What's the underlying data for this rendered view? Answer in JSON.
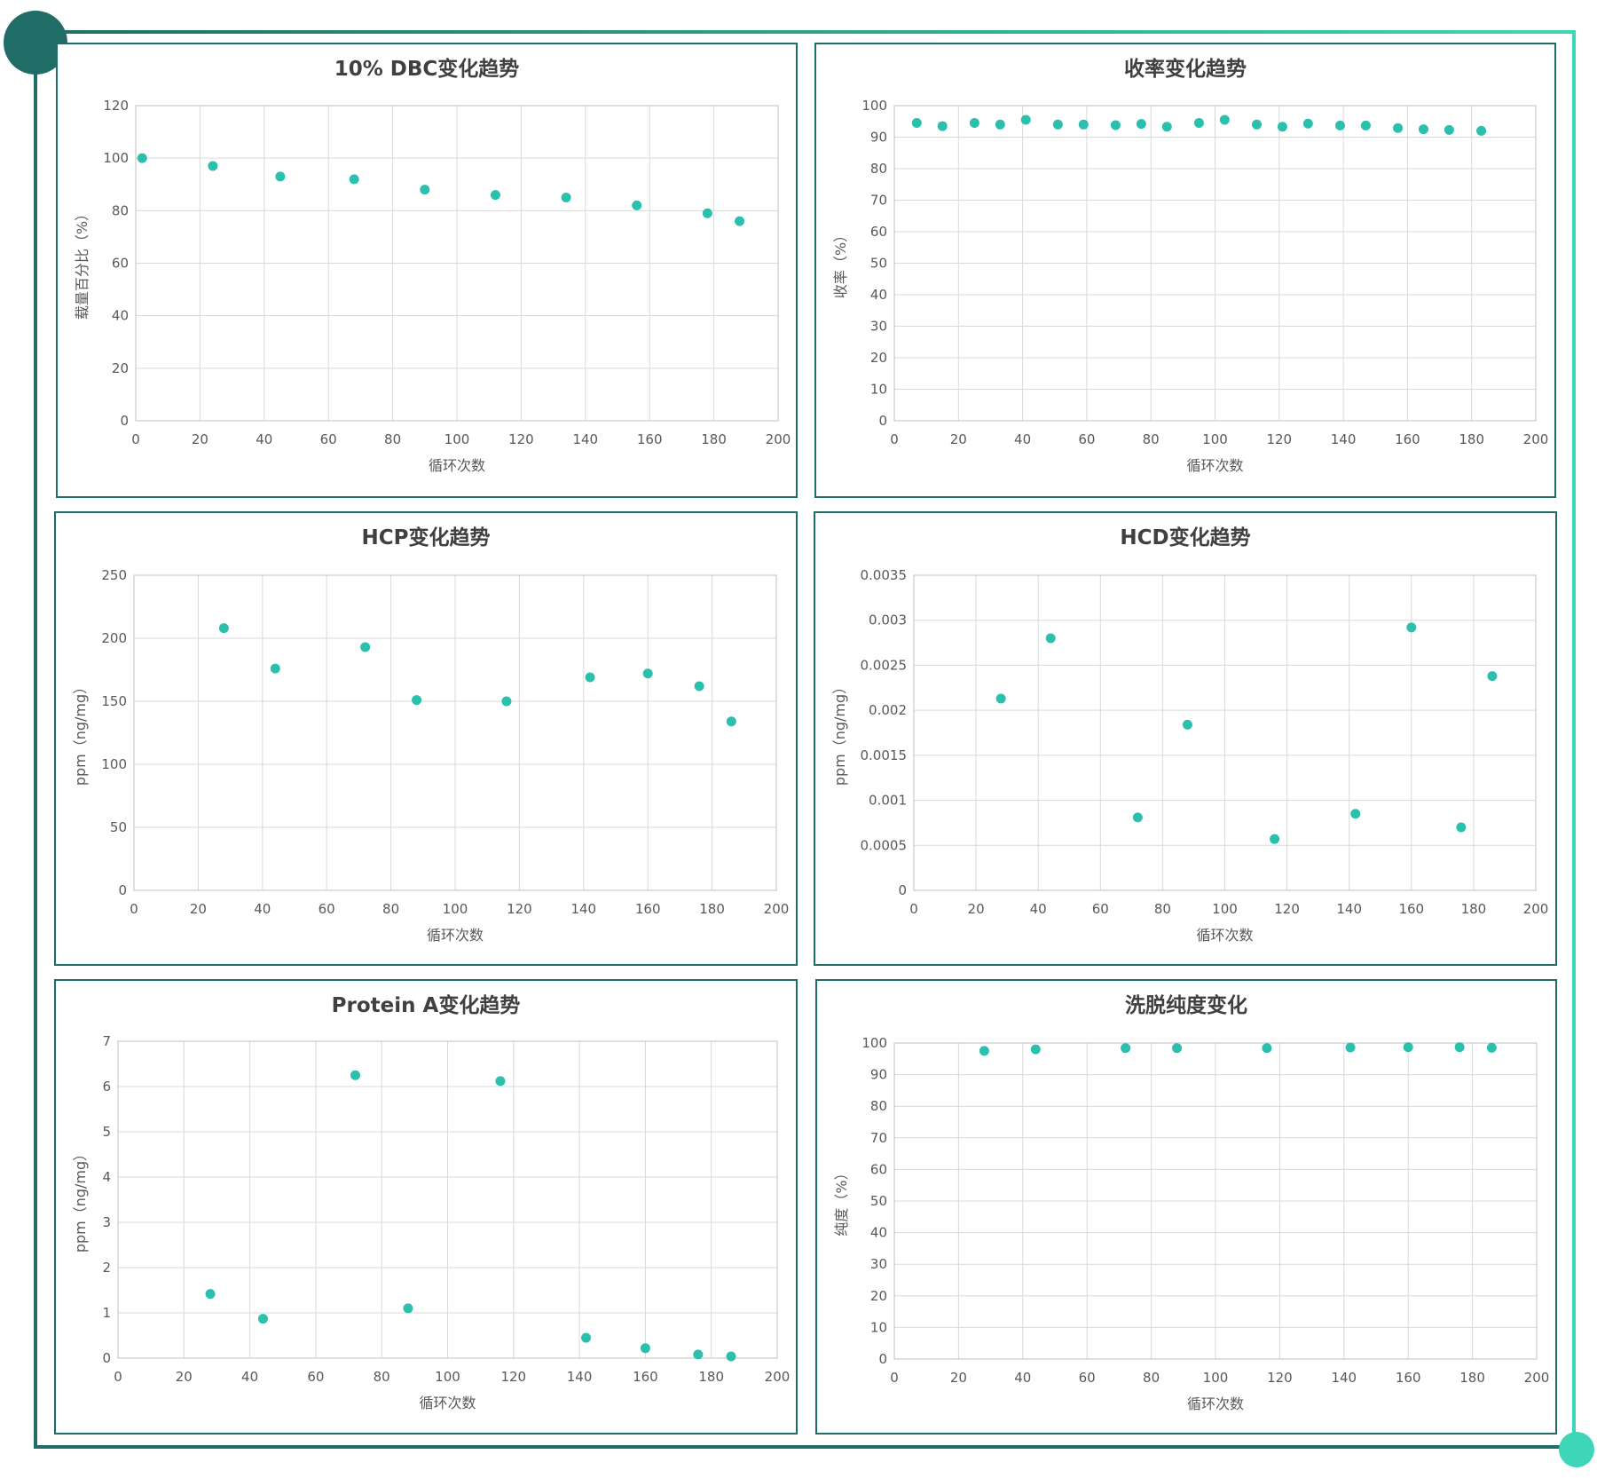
{
  "decor": {
    "frame_color": "#1f6d66",
    "accent_color": "#3dd6b6",
    "marker_color": "#2bbfae"
  },
  "chart_data": [
    {
      "type": "scatter",
      "title": "10% DBC变化趋势",
      "xlabel": "循环次数",
      "ylabel": "载量百分比（%）",
      "xlim": [
        0,
        200
      ],
      "ylim": [
        0,
        120
      ],
      "xticks": [
        0,
        20,
        40,
        60,
        80,
        100,
        120,
        140,
        160,
        180,
        200
      ],
      "yticks": [
        0,
        20,
        40,
        60,
        80,
        100,
        120
      ],
      "x": [
        2,
        24,
        45,
        68,
        90,
        112,
        134,
        156,
        178,
        188
      ],
      "y": [
        100,
        97,
        93,
        92,
        88,
        86,
        85,
        82,
        79,
        76
      ]
    },
    {
      "type": "scatter",
      "title": "收率变化趋势",
      "xlabel": "循环次数",
      "ylabel": "收率（%）",
      "xlim": [
        0,
        200
      ],
      "ylim": [
        0,
        100
      ],
      "xticks": [
        0,
        20,
        40,
        60,
        80,
        100,
        120,
        140,
        160,
        180,
        200
      ],
      "yticks": [
        0,
        10,
        20,
        30,
        40,
        50,
        60,
        70,
        80,
        90,
        100
      ],
      "x": [
        7,
        15,
        25,
        33,
        41,
        51,
        59,
        69,
        77,
        85,
        95,
        103,
        113,
        121,
        129,
        139,
        147,
        157,
        165,
        173,
        183
      ],
      "y": [
        94.5,
        93.5,
        94.5,
        94,
        95.5,
        94,
        94,
        93.8,
        94.2,
        93.3,
        94.5,
        95.5,
        94,
        93.3,
        94.3,
        93.7,
        93.7,
        92.9,
        92.5,
        92.3,
        92
      ]
    },
    {
      "type": "scatter",
      "title": "HCP变化趋势",
      "xlabel": "循环次数",
      "ylabel": "ppm（ng/mg）",
      "xlim": [
        0,
        200
      ],
      "ylim": [
        0,
        250
      ],
      "xticks": [
        0,
        20,
        40,
        60,
        80,
        100,
        120,
        140,
        160,
        180,
        200
      ],
      "yticks": [
        0,
        50,
        100,
        150,
        200,
        250
      ],
      "x": [
        28,
        44,
        72,
        88,
        116,
        142,
        160,
        176,
        186
      ],
      "y": [
        208,
        176,
        193,
        151,
        150,
        169,
        172,
        162,
        134
      ]
    },
    {
      "type": "scatter",
      "title": "HCD变化趋势",
      "xlabel": "循环次数",
      "ylabel": "ppm（ng/mg）",
      "xlim": [
        0,
        200
      ],
      "ylim": [
        0,
        0.0035
      ],
      "xticks": [
        0,
        20,
        40,
        60,
        80,
        100,
        120,
        140,
        160,
        180,
        200
      ],
      "yticks": [
        0,
        0.0005,
        0.001,
        0.0015,
        0.002,
        0.0025,
        0.003,
        0.0035
      ],
      "x": [
        28,
        44,
        72,
        88,
        116,
        142,
        160,
        176,
        186
      ],
      "y": [
        0.00213,
        0.0028,
        0.00081,
        0.00184,
        0.00057,
        0.00085,
        0.00292,
        0.0007,
        0.00238
      ]
    },
    {
      "type": "scatter",
      "title": "Protein A变化趋势",
      "xlabel": "循环次数",
      "ylabel": "ppm（ng/mg）",
      "xlim": [
        0,
        200
      ],
      "ylim": [
        0,
        7
      ],
      "xticks": [
        0,
        20,
        40,
        60,
        80,
        100,
        120,
        140,
        160,
        180,
        200
      ],
      "yticks": [
        0,
        1,
        2,
        3,
        4,
        5,
        6,
        7
      ],
      "x": [
        28,
        44,
        72,
        88,
        116,
        142,
        160,
        176,
        186
      ],
      "y": [
        1.42,
        0.87,
        6.25,
        1.1,
        6.12,
        0.45,
        0.22,
        0.08,
        0.04
      ]
    },
    {
      "type": "scatter",
      "title": "洗脱纯度变化",
      "xlabel": "循环次数",
      "ylabel": "纯度（%）",
      "xlim": [
        0,
        200
      ],
      "ylim": [
        0,
        100
      ],
      "xticks": [
        0,
        20,
        40,
        60,
        80,
        100,
        120,
        140,
        160,
        180,
        200
      ],
      "yticks": [
        0,
        10,
        20,
        30,
        40,
        50,
        60,
        70,
        80,
        90,
        100
      ],
      "x": [
        28,
        44,
        72,
        88,
        116,
        142,
        160,
        176,
        186
      ],
      "y": [
        97.5,
        98,
        98.4,
        98.4,
        98.4,
        98.6,
        98.7,
        98.7,
        98.5
      ]
    }
  ]
}
